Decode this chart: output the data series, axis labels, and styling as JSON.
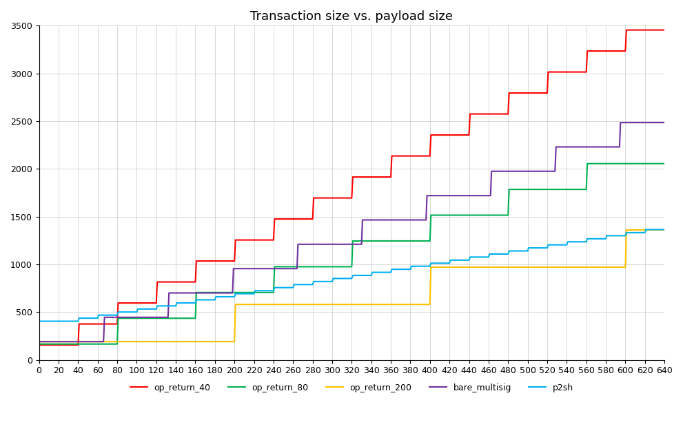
{
  "title": "Transaction size vs. payload size",
  "xlim": [
    0,
    640
  ],
  "ylim": [
    0,
    3500
  ],
  "xticks": [
    0,
    20,
    40,
    60,
    80,
    100,
    120,
    140,
    160,
    180,
    200,
    220,
    240,
    260,
    280,
    300,
    320,
    340,
    360,
    380,
    400,
    420,
    440,
    460,
    480,
    500,
    520,
    540,
    560,
    580,
    600,
    620,
    640
  ],
  "yticks": [
    0,
    500,
    1000,
    1500,
    2000,
    2500,
    3000,
    3500
  ],
  "series": [
    {
      "name": "op_return_40",
      "color": "#FF0000"
    },
    {
      "name": "op_return_80",
      "color": "#00B050"
    },
    {
      "name": "op_return_200",
      "color": "#FFC000"
    },
    {
      "name": "bare_multisig",
      "color": "#7030A0"
    },
    {
      "name": "p2sh",
      "color": "#00B0F0"
    }
  ],
  "background_color": "#FFFFFF",
  "grid_color": "#C8C8C8",
  "title_fontsize": 13,
  "legend_fontsize": 9,
  "tick_fontsize": 9
}
